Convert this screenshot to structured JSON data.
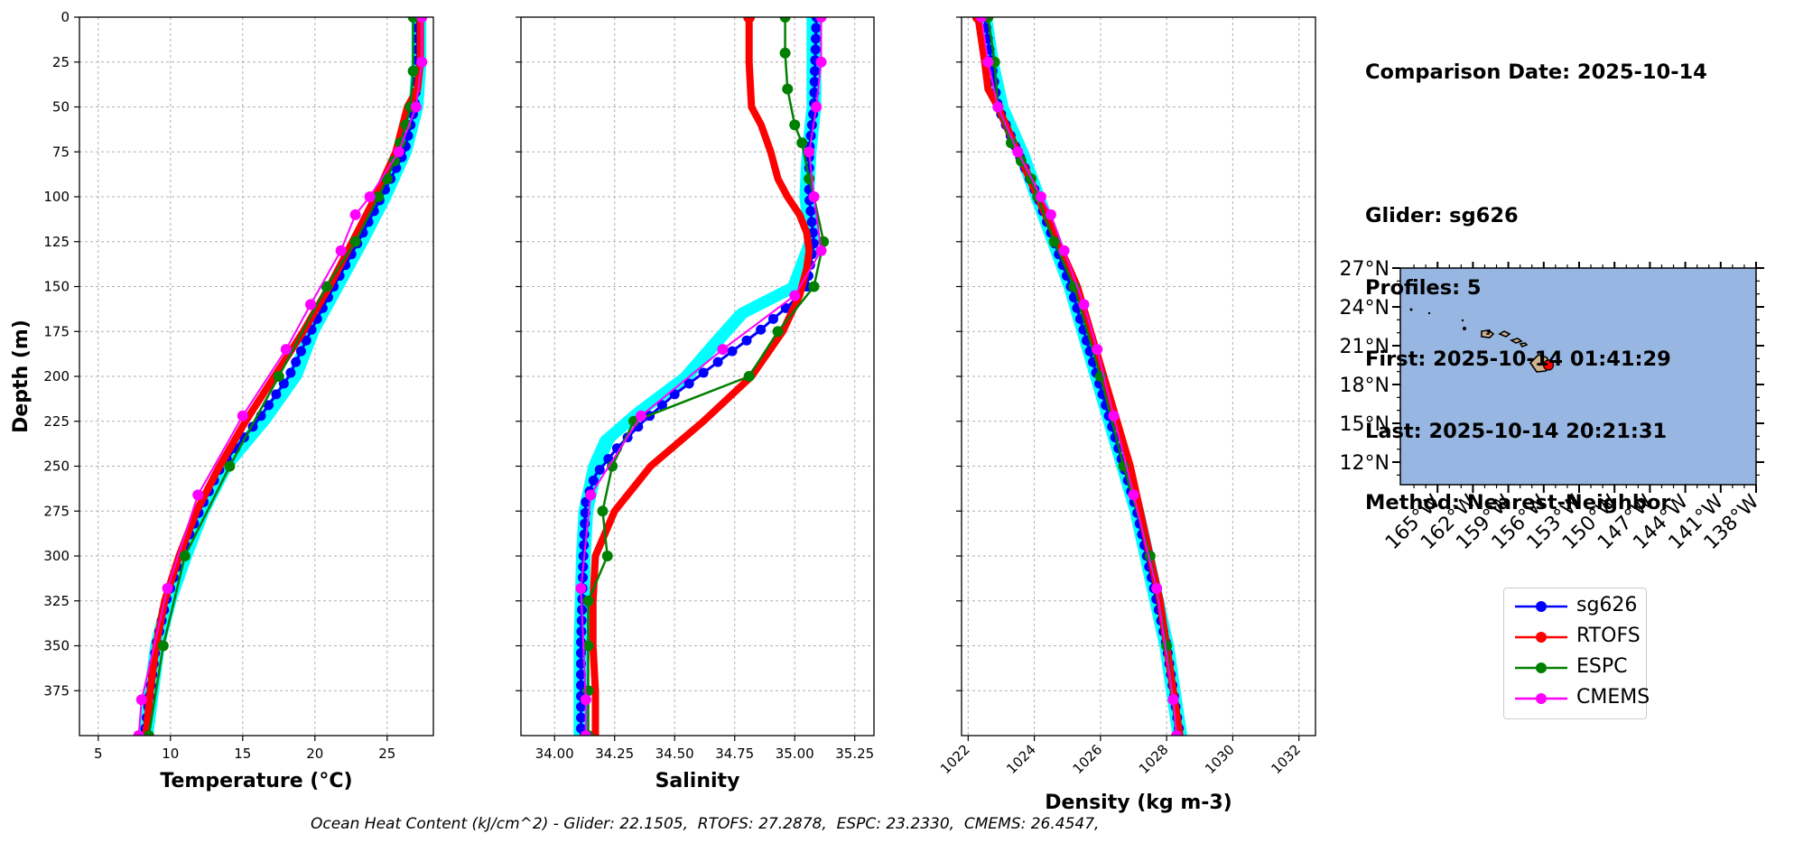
{
  "chart_data": {
    "type": "line",
    "title": "",
    "y_axis": {
      "label": "Depth (m)",
      "range": [
        0,
        400
      ],
      "inverted": true,
      "ticks": [
        0,
        25,
        50,
        75,
        100,
        125,
        150,
        175,
        200,
        225,
        250,
        275,
        300,
        325,
        350,
        375
      ]
    },
    "panels": [
      {
        "name": "temperature",
        "xlabel": "Temperature (°C)",
        "xlim": [
          3.7,
          28.2
        ],
        "xticks": [
          5,
          10,
          15,
          20,
          25
        ],
        "xtick_labels": [
          "5",
          "10",
          "15",
          "20",
          "25"
        ],
        "series": [
          {
            "name": "glider_individual",
            "style": "cyan-band",
            "depth": [
              0,
              25,
              50,
              75,
              100,
              125,
              150,
              175,
              200,
              225,
              250,
              275,
              300,
              325,
              350,
              375,
              400
            ],
            "values": [
              27.2,
              27.2,
              27.0,
              26.2,
              24.8,
              23.2,
              21.5,
              19.8,
              18.6,
              16.4,
              13.8,
              12.2,
              11.0,
              9.9,
              9.1,
              8.7,
              8.3
            ]
          },
          {
            "name": "sg626",
            "depth": [
              0,
              25,
              50,
              75,
              100,
              125,
              150,
              175,
              200,
              225,
              250,
              275,
              300,
              325,
              350,
              375,
              400
            ],
            "values": [
              27.1,
              27.1,
              26.9,
              26.2,
              24.6,
              23.0,
              21.3,
              19.7,
              18.2,
              16.0,
              13.5,
              12.0,
              10.7,
              9.7,
              9.0,
              8.6,
              8.2
            ]
          },
          {
            "name": "RTOFS",
            "depth": [
              0,
              25,
              40,
              50,
              75,
              100,
              125,
              150,
              175,
              200,
              225,
              250,
              275,
              300,
              325,
              350,
              375,
              400
            ],
            "values": [
              27.3,
              27.3,
              27.1,
              26.4,
              25.6,
              24.2,
              22.6,
              21.0,
              19.2,
              17.2,
              15.2,
              13.4,
              11.8,
              10.6,
              9.6,
              9.0,
              8.6,
              8.3
            ]
          },
          {
            "name": "ESPC",
            "depth": [
              0,
              30,
              50,
              60,
              70,
              80,
              90,
              100,
              125,
              150,
              200,
              250,
              300,
              350,
              400
            ],
            "values": [
              26.8,
              26.8,
              26.6,
              26.3,
              25.9,
              25.5,
              25.0,
              24.4,
              22.8,
              20.8,
              17.5,
              14.1,
              11.0,
              9.5,
              8.5
            ]
          },
          {
            "name": "CMEMS",
            "depth": [
              0,
              25,
              50,
              75,
              100,
              110,
              130,
              160,
              185,
              222,
              266,
              318,
              380,
              400
            ],
            "values": [
              27.4,
              27.4,
              27.0,
              25.8,
              23.8,
              22.8,
              21.8,
              19.7,
              18.0,
              15.0,
              11.9,
              9.8,
              8.0,
              7.8
            ]
          }
        ]
      },
      {
        "name": "salinity",
        "xlabel": "Salinity",
        "xlim": [
          33.86,
          35.33
        ],
        "xticks": [
          34.0,
          34.25,
          34.5,
          34.75,
          35.0,
          35.25
        ],
        "xtick_labels": [
          "34.00",
          "34.25",
          "34.50",
          "34.75",
          "35.00",
          "35.25"
        ],
        "series": [
          {
            "name": "glider_individual",
            "style": "cyan-band",
            "depth": [
              0,
              50,
              75,
              100,
              125,
              150,
              165,
              180,
              200,
              220,
              235,
              250,
              275,
              300,
              350,
              400
            ],
            "values": [
              35.08,
              35.08,
              35.06,
              35.05,
              35.07,
              35.0,
              34.78,
              34.68,
              34.55,
              34.35,
              34.22,
              34.17,
              34.13,
              34.12,
              34.11,
              34.11
            ]
          },
          {
            "name": "sg626",
            "depth": [
              0,
              50,
              75,
              100,
              125,
              150,
              160,
              175,
              195,
              210,
              225,
              240,
              255,
              270,
              300,
              350,
              400
            ],
            "values": [
              35.09,
              35.08,
              35.06,
              35.06,
              35.08,
              35.05,
              34.98,
              34.85,
              34.65,
              34.5,
              34.37,
              34.26,
              34.17,
              34.13,
              34.12,
              34.11,
              34.11
            ]
          },
          {
            "name": "RTOFS",
            "depth": [
              0,
              25,
              50,
              60,
              75,
              90,
              100,
              110,
              120,
              130,
              140,
              155,
              175,
              200,
              225,
              250,
              275,
              300,
              325,
              350,
              375,
              400
            ],
            "values": [
              34.81,
              34.81,
              34.82,
              34.86,
              34.9,
              34.93,
              34.97,
              35.02,
              35.05,
              35.06,
              35.05,
              35.02,
              34.95,
              34.82,
              34.62,
              34.4,
              34.25,
              34.17,
              34.16,
              34.16,
              34.17,
              34.17
            ]
          },
          {
            "name": "ESPC",
            "depth": [
              0,
              20,
              40,
              60,
              70,
              90,
              100,
              125,
              150,
              175,
              200,
              225,
              250,
              275,
              300,
              325,
              350,
              375,
              400
            ],
            "values": [
              34.96,
              34.96,
              34.97,
              35.0,
              35.03,
              35.06,
              35.08,
              35.12,
              35.08,
              34.93,
              34.81,
              34.33,
              34.24,
              34.2,
              34.22,
              34.14,
              34.14,
              34.14,
              34.14
            ]
          },
          {
            "name": "CMEMS",
            "depth": [
              0,
              25,
              50,
              75,
              100,
              130,
              155,
              185,
              222,
              266,
              318,
              380,
              400
            ],
            "values": [
              35.11,
              35.11,
              35.09,
              35.06,
              35.08,
              35.11,
              35.0,
              34.7,
              34.36,
              34.15,
              34.11,
              34.13,
              34.13
            ]
          }
        ]
      },
      {
        "name": "density",
        "xlabel": "Density (kg m-3)",
        "xlim": [
          1021.8,
          1032.5
        ],
        "xticks": [
          1022,
          1024,
          1026,
          1028,
          1030,
          1032
        ],
        "xtick_labels": [
          "1022",
          "1024",
          "1026",
          "1028",
          "1030",
          "1032"
        ],
        "series": [
          {
            "name": "glider_individual",
            "style": "cyan-band",
            "depth": [
              0,
              25,
              50,
              75,
              100,
              125,
              150,
              175,
              200,
              225,
              250,
              275,
              300,
              325,
              350,
              375,
              400
            ],
            "values": [
              1022.5,
              1022.7,
              1023.0,
              1023.6,
              1024.1,
              1024.6,
              1025.1,
              1025.5,
              1025.9,
              1026.3,
              1026.7,
              1027.1,
              1027.4,
              1027.7,
              1028.0,
              1028.2,
              1028.4
            ]
          },
          {
            "name": "sg626",
            "depth": [
              0,
              25,
              50,
              75,
              100,
              125,
              150,
              175,
              200,
              225,
              250,
              275,
              300,
              325,
              350,
              375,
              400
            ],
            "values": [
              1022.5,
              1022.7,
              1022.9,
              1023.5,
              1024.1,
              1024.6,
              1025.1,
              1025.5,
              1025.9,
              1026.3,
              1026.7,
              1027.1,
              1027.4,
              1027.7,
              1028.0,
              1028.2,
              1028.4
            ]
          },
          {
            "name": "RTOFS",
            "depth": [
              0,
              25,
              40,
              50,
              75,
              100,
              125,
              150,
              175,
              200,
              225,
              250,
              275,
              300,
              325,
              350,
              375,
              400
            ],
            "values": [
              1022.3,
              1022.5,
              1022.6,
              1022.9,
              1023.5,
              1024.1,
              1024.7,
              1025.3,
              1025.7,
              1026.1,
              1026.5,
              1026.9,
              1027.2,
              1027.5,
              1027.8,
              1028.0,
              1028.2,
              1028.4
            ]
          },
          {
            "name": "ESPC",
            "depth": [
              0,
              25,
              50,
              70,
              80,
              90,
              100,
              125,
              150,
              200,
              250,
              300,
              350,
              400
            ],
            "values": [
              1022.6,
              1022.8,
              1022.9,
              1023.3,
              1023.6,
              1023.9,
              1024.1,
              1024.6,
              1025.2,
              1026.0,
              1026.7,
              1027.5,
              1028.0,
              1028.3
            ]
          },
          {
            "name": "CMEMS",
            "depth": [
              0,
              25,
              50,
              75,
              100,
              110,
              130,
              160,
              185,
              222,
              266,
              318,
              380,
              400
            ],
            "values": [
              1022.4,
              1022.6,
              1022.9,
              1023.5,
              1024.2,
              1024.5,
              1024.9,
              1025.5,
              1025.9,
              1026.4,
              1027.0,
              1027.7,
              1028.2,
              1028.3
            ]
          }
        ]
      }
    ],
    "legend": {
      "placement": "right",
      "entries": [
        {
          "name": "sg626",
          "color": "#0000ff"
        },
        {
          "name": "RTOFS",
          "color": "#ff0000"
        },
        {
          "name": "ESPC",
          "color": "#008000"
        },
        {
          "name": "CMEMS",
          "color": "#ff00ff"
        }
      ]
    },
    "map": {
      "lat_labels": [
        "27°N",
        "24°N",
        "21°N",
        "18°N",
        "15°N",
        "12°N"
      ],
      "lon_labels": [
        "165°W",
        "162°W",
        "159°W",
        "156°W",
        "153°W",
        "150°W",
        "147°W",
        "144°W",
        "141°W",
        "138°W"
      ],
      "glider_position": {
        "lon": -155.6,
        "lat": 19.5
      }
    }
  },
  "colors": {
    "cyan": "#00ffff",
    "blue": "#0000ff",
    "red": "#ff0000",
    "green": "#008000",
    "magenta": "#ff00ff",
    "ocean": "#97b6e1",
    "land": "#d2b48c"
  },
  "info": {
    "comparison_date": "Comparison Date: 2025-10-14",
    "glider": "Glider: sg626",
    "profiles": "Profiles: 5",
    "first": "First: 2025-10-14 01:41:29",
    "last": "Last: 2025-10-14 20:21:31",
    "method": "Method: Nearest-Neighbor"
  },
  "footer": "Ocean Heat Content (kJ/cm^2) - Glider: 22.1505,  RTOFS: 27.2878,  ESPC: 23.2330,  CMEMS: 26.4547,"
}
